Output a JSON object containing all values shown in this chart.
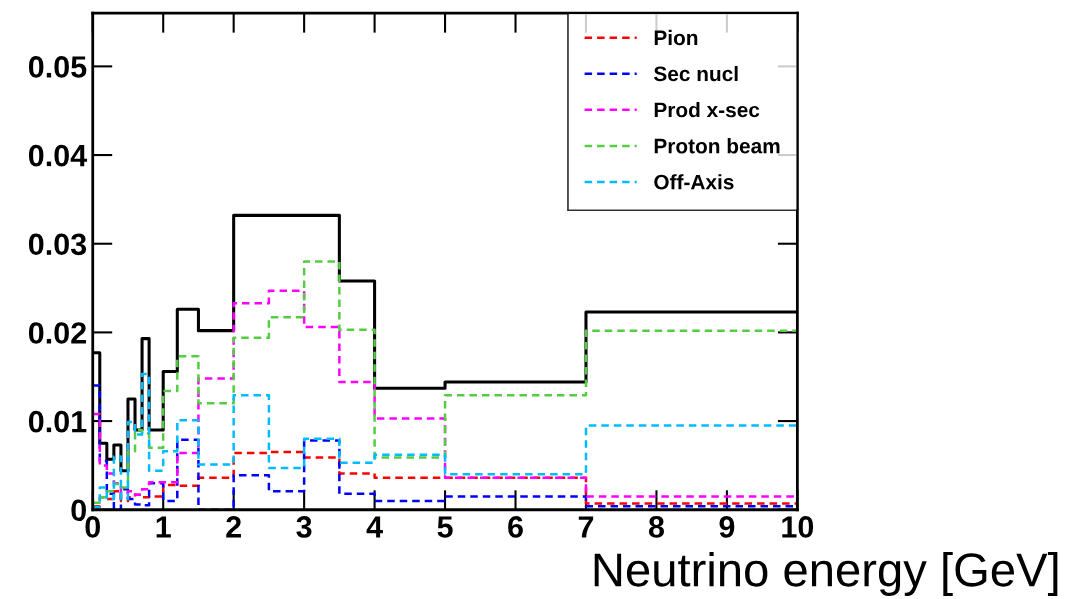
{
  "chart_data": {
    "type": "histogram",
    "xlabel": "Neutrino energy [GeV]",
    "bins": [
      0,
      0.1,
      0.2,
      0.3,
      0.4,
      0.5,
      0.6,
      0.7,
      0.8,
      1.0,
      1.2,
      1.5,
      2.0,
      2.5,
      3.0,
      3.5,
      4.0,
      5.0,
      7.0,
      10.0
    ],
    "series": [
      {
        "color": "#000000",
        "line_style": "solid",
        "values": [
          0.0177,
          0.0075,
          0.0057,
          0.0073,
          0.0044,
          0.0125,
          0.009,
          0.0193,
          0.009,
          0.0156,
          0.0226,
          0.0202,
          0.0332,
          0.0332,
          0.0332,
          0.0258,
          0.0137,
          0.0144,
          0.0223
        ]
      },
      {
        "name": "Pion",
        "color": "#ff0000",
        "line_style": "dashed",
        "values": [
          0.0004,
          0.0014,
          0.0012,
          0.0021,
          0.001,
          0.0014,
          0.0017,
          0.0014,
          0.0015,
          0.0028,
          0.0027,
          0.0036,
          0.0064,
          0.0065,
          0.0059,
          0.0041,
          0.0036,
          0.0036,
          0.0007
        ]
      },
      {
        "name": "Sec nucl",
        "color": "#0000ff",
        "line_style": "dashed",
        "values": [
          0.014,
          0.0055,
          0.0018,
          0.0,
          0.0023,
          0.0012,
          0.0006,
          0.0005,
          0.003,
          0.001,
          0.0079,
          0.0,
          0.0039,
          0.0021,
          0.0078,
          0.0018,
          0.001,
          0.0015,
          0.0004
        ]
      },
      {
        "name": "Prod x-sec",
        "color": "#ff00ff",
        "line_style": "dashed",
        "values": [
          0.0108,
          0.005,
          0.0041,
          0.003,
          0.0019,
          0.0021,
          0.0017,
          0.0023,
          0.0031,
          0.0031,
          0.0064,
          0.0148,
          0.0233,
          0.0247,
          0.0206,
          0.0144,
          0.0103,
          0.0036,
          0.0015
        ]
      },
      {
        "name": "Proton beam",
        "color": "#55cc44",
        "line_style": "dashed",
        "values": [
          0.0008,
          0.0014,
          0.0021,
          0.0029,
          0.0025,
          0.0066,
          0.009,
          0.0086,
          0.007,
          0.0134,
          0.0173,
          0.012,
          0.0194,
          0.0217,
          0.028,
          0.0203,
          0.0059,
          0.0129,
          0.0202
        ]
      },
      {
        "name": "Off-Axis",
        "color": "#00bbff",
        "line_style": "dashed",
        "values": [
          0.0003,
          0.0025,
          0.0012,
          0.006,
          0.0012,
          0.0099,
          0.0085,
          0.0153,
          0.0044,
          0.0066,
          0.0101,
          0.0051,
          0.0129,
          0.0047,
          0.008,
          0.0053,
          0.0062,
          0.004,
          0.0095
        ]
      }
    ],
    "xlim": [
      0,
      10
    ],
    "ylim": [
      0,
      0.056
    ],
    "xticks": [
      0,
      1,
      2,
      3,
      4,
      5,
      6,
      7,
      8,
      9,
      10
    ],
    "yticks": [
      0,
      0.01,
      0.02,
      0.03,
      0.04,
      0.05
    ],
    "legend": "top right",
    "grid": false
  }
}
